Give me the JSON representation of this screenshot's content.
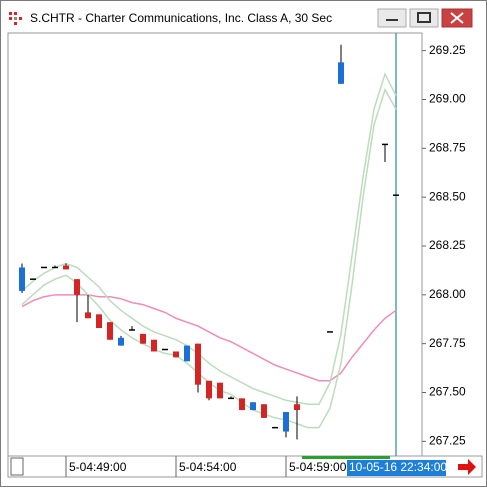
{
  "chart_data": {
    "type": "candlestick",
    "title": "S.CHTR - Charter Communications, Inc. Class A, 30 Sec",
    "cursor_label": "10-05-16 22:34:00",
    "categories": [
      null,
      null,
      null,
      null,
      "5-04:49:00",
      null,
      null,
      null,
      null,
      null,
      null,
      null,
      null,
      null,
      "5-04:54:00",
      null,
      null,
      null,
      null,
      null,
      null,
      null,
      null,
      null,
      "5-04:59:00",
      null,
      null,
      null,
      null,
      null,
      null,
      null,
      null,
      null,
      null
    ],
    "open": [
      268.02,
      268.08,
      268.14,
      268.14,
      268.15,
      268.08,
      267.91,
      267.9,
      267.86,
      267.74,
      267.82,
      267.8,
      267.77,
      267.72,
      267.71,
      267.66,
      267.75,
      267.56,
      267.55,
      267.47,
      267.47,
      267.41,
      267.44,
      267.32,
      267.3,
      267.44,
      null,
      null,
      267.81,
      269.08,
      null,
      null,
      null,
      268.77,
      268.51
    ],
    "high": [
      268.16,
      268.08,
      268.14,
      268.15,
      268.16,
      268.08,
      268.0,
      267.9,
      267.86,
      267.79,
      267.84,
      267.8,
      267.77,
      267.72,
      267.71,
      267.74,
      267.75,
      267.56,
      267.55,
      267.48,
      267.47,
      267.45,
      267.44,
      267.32,
      267.4,
      267.48,
      null,
      null,
      267.81,
      269.28,
      null,
      null,
      null,
      268.77,
      268.51
    ],
    "low": [
      268.01,
      268.08,
      268.14,
      268.14,
      268.13,
      267.86,
      267.88,
      267.83,
      267.77,
      267.74,
      267.82,
      267.75,
      267.71,
      267.72,
      267.68,
      267.66,
      267.5,
      267.46,
      267.47,
      267.47,
      267.41,
      267.41,
      267.37,
      267.32,
      267.27,
      267.26,
      null,
      null,
      267.81,
      269.08,
      null,
      null,
      null,
      268.68,
      268.51
    ],
    "close": [
      268.14,
      268.08,
      268.14,
      268.14,
      268.13,
      268.0,
      267.88,
      267.83,
      267.77,
      267.78,
      267.82,
      267.75,
      267.71,
      267.72,
      267.68,
      267.74,
      267.54,
      267.47,
      267.47,
      267.47,
      267.41,
      267.45,
      267.37,
      267.32,
      267.4,
      267.41,
      null,
      null,
      267.81,
      269.19,
      null,
      null,
      null,
      268.77,
      268.51
    ],
    "up_color": "#1c6fd6",
    "down_color": "#d42424",
    "flat_color": "#000000",
    "lines": [
      {
        "color": "#f08cb8",
        "values": [
          267.94,
          267.97,
          267.99,
          268.0,
          268.0,
          268.0,
          268.0,
          267.99,
          267.99,
          267.98,
          267.96,
          267.95,
          267.93,
          267.91,
          267.88,
          267.86,
          267.84,
          267.81,
          267.78,
          267.76,
          267.73,
          267.7,
          267.67,
          267.64,
          267.62,
          267.6,
          267.58,
          267.56,
          267.56,
          267.6,
          267.68,
          267.75,
          267.82,
          267.88,
          267.92
        ]
      },
      {
        "color": "#bcdcbc",
        "values": [
          268.02,
          268.07,
          268.11,
          268.14,
          268.16,
          268.14,
          268.09,
          268.04,
          267.97,
          267.92,
          267.88,
          267.84,
          267.81,
          267.79,
          267.77,
          267.74,
          267.7,
          267.65,
          267.61,
          267.58,
          267.55,
          267.52,
          267.5,
          267.48,
          267.46,
          267.45,
          267.44,
          267.44,
          267.55,
          267.8,
          268.2,
          268.6,
          268.95,
          269.13,
          269.02
        ]
      },
      {
        "color": "#bcdcbc",
        "values": [
          267.95,
          268.0,
          268.05,
          268.08,
          268.1,
          268.06,
          268.0,
          267.94,
          267.87,
          267.82,
          267.78,
          267.75,
          267.72,
          267.7,
          267.69,
          267.65,
          267.6,
          267.55,
          267.51,
          267.49,
          267.45,
          267.41,
          267.39,
          267.37,
          267.36,
          267.34,
          267.32,
          267.32,
          267.42,
          267.65,
          268.05,
          268.5,
          268.87,
          269.05,
          268.95
        ]
      }
    ],
    "ylim": [
      267.18,
      269.33
    ],
    "yticks": [
      267.25,
      {
        "value": 267.5,
        "label": "267.50"
      },
      267.75,
      {
        "value": 268.0,
        "label": "268.00"
      },
      268.25,
      {
        "value": 268.5,
        "label": "268.50"
      },
      268.75,
      {
        "value": 269.0,
        "label": "269.00"
      },
      269.25
    ],
    "grid": false
  }
}
